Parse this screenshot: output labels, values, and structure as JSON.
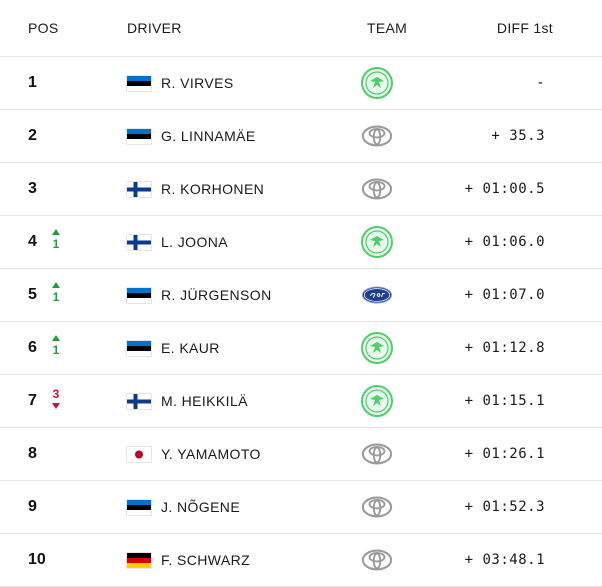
{
  "headers": {
    "pos": "POS",
    "driver": "DRIVER",
    "team": "TEAM",
    "diff": "DIFF 1st"
  },
  "rows": [
    {
      "pos": "1",
      "change": "",
      "change_dir": "",
      "flag": "estonia",
      "driver": "R. VIRVES",
      "team": "skoda",
      "diff": "-"
    },
    {
      "pos": "2",
      "change": "",
      "change_dir": "",
      "flag": "estonia",
      "driver": "G. LINNAMÄE",
      "team": "toyota",
      "diff": "+ 35.3"
    },
    {
      "pos": "3",
      "change": "",
      "change_dir": "",
      "flag": "finland",
      "driver": "R. KORHONEN",
      "team": "toyota",
      "diff": "+ 01:00.5"
    },
    {
      "pos": "4",
      "change": "1",
      "change_dir": "up",
      "flag": "finland",
      "driver": "L. JOONA",
      "team": "skoda",
      "diff": "+ 01:06.0"
    },
    {
      "pos": "5",
      "change": "1",
      "change_dir": "up",
      "flag": "estonia",
      "driver": "R. JÜRGENSON",
      "team": "ford",
      "diff": "+ 01:07.0"
    },
    {
      "pos": "6",
      "change": "1",
      "change_dir": "up",
      "flag": "estonia",
      "driver": "E. KAUR",
      "team": "skoda",
      "diff": "+ 01:12.8"
    },
    {
      "pos": "7",
      "change": "3",
      "change_dir": "down",
      "flag": "finland",
      "driver": "M. HEIKKILÄ",
      "team": "skoda",
      "diff": "+ 01:15.1"
    },
    {
      "pos": "8",
      "change": "",
      "change_dir": "",
      "flag": "japan",
      "driver": "Y. YAMAMOTO",
      "team": "toyota",
      "diff": "+ 01:26.1"
    },
    {
      "pos": "9",
      "change": "",
      "change_dir": "",
      "flag": "estonia",
      "driver": "J. NÕGENE",
      "team": "toyota",
      "diff": "+ 01:52.3"
    },
    {
      "pos": "10",
      "change": "",
      "change_dir": "",
      "flag": "germany",
      "driver": "F. SCHWARZ",
      "team": "toyota",
      "diff": "+ 03:48.1"
    }
  ],
  "colors": {
    "up": "#1e9e3e",
    "down": "#d0103a",
    "divider": "#e4e4e4",
    "skoda": "#4ecf6a",
    "ford": "#1c3f94",
    "toyota": "#9a9a9a"
  }
}
